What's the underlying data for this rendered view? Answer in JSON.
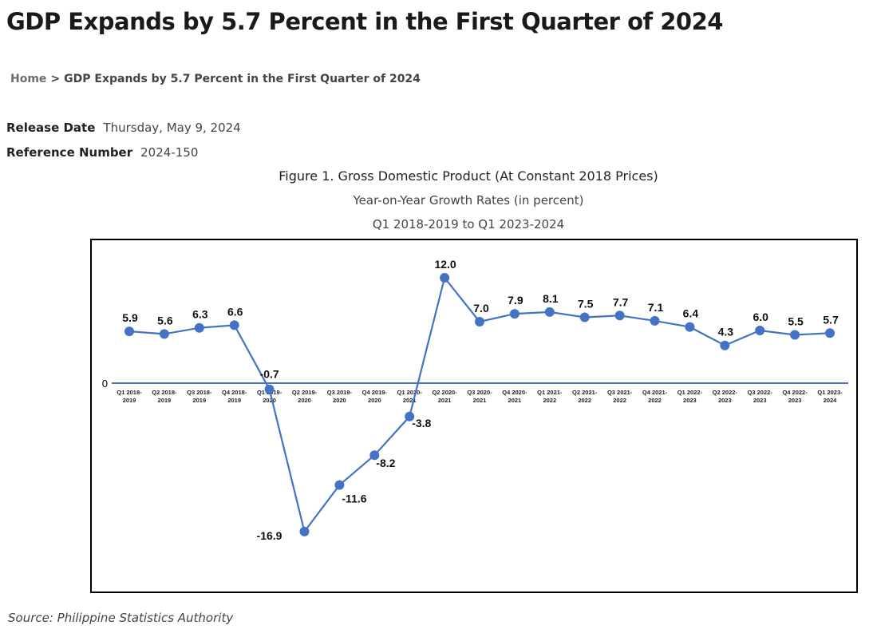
{
  "page": {
    "title": "GDP Expands by 5.7 Percent in the First Quarter of 2024"
  },
  "breadcrumb": {
    "home": "Home",
    "separator": ">",
    "current": "GDP Expands by 5.7 Percent in the First Quarter of 2024"
  },
  "release": {
    "date_label": "Release Date",
    "date_value": "Thursday, May 9, 2024",
    "ref_label": "Reference Number",
    "ref_value": "2024-150"
  },
  "figure": {
    "title": "Figure 1. Gross Domestic Product (At Constant 2018 Prices)",
    "subtitle1": "Year-on-Year Growth Rates (in percent)",
    "subtitle2": "Q1 2018-2019 to Q1 2023-2024"
  },
  "chart_data": {
    "type": "line",
    "title": "Figure 1. Gross Domestic Product (At Constant 2018 Prices)",
    "categories": [
      [
        "Q1 2018-",
        "2019"
      ],
      [
        "Q2 2018-",
        "2019"
      ],
      [
        "Q3 2018-",
        "2019"
      ],
      [
        "Q4 2018-",
        "2019"
      ],
      [
        "Q1 2019-",
        "2020"
      ],
      [
        "Q2 2019-",
        "2020"
      ],
      [
        "Q3 2019-",
        "2020"
      ],
      [
        "Q4 2019-",
        "2020"
      ],
      [
        "Q1 2020-",
        "2021"
      ],
      [
        "Q2 2020-",
        "2021"
      ],
      [
        "Q3 2020-",
        "2021"
      ],
      [
        "Q4 2020-",
        "2021"
      ],
      [
        "Q1 2021-",
        "2022"
      ],
      [
        "Q2 2021-",
        "2022"
      ],
      [
        "Q3 2021-",
        "2022"
      ],
      [
        "Q4 2021-",
        "2022"
      ],
      [
        "Q1 2022-",
        "2023"
      ],
      [
        "Q2 2022-",
        "2023"
      ],
      [
        "Q3 2022-",
        "2023"
      ],
      [
        "Q4 2022-",
        "2023"
      ],
      [
        "Q1 2023-",
        "2024"
      ]
    ],
    "values": [
      5.9,
      5.6,
      6.3,
      6.6,
      -0.7,
      -16.9,
      -11.6,
      -8.2,
      -3.8,
      12.0,
      7.0,
      7.9,
      8.1,
      7.5,
      7.7,
      7.1,
      6.4,
      4.3,
      6.0,
      5.5,
      5.7
    ],
    "labels": [
      "5.9",
      "5.6",
      "6.3",
      "6.6",
      "-0.7",
      "-16.9",
      "-11.6",
      "-8.2",
      "-3.8",
      "12.0",
      "7.0",
      "7.9",
      "8.1",
      "7.5",
      "7.7",
      "7.1",
      "6.4",
      "4.3",
      "6.0",
      "5.5",
      "5.7"
    ],
    "zero_label": "0",
    "line_color": "#4472c4",
    "axis_color": "#4472c4",
    "grid": false,
    "legend": "none"
  },
  "source": {
    "text": "Source: Philippine Statistics Authority"
  }
}
